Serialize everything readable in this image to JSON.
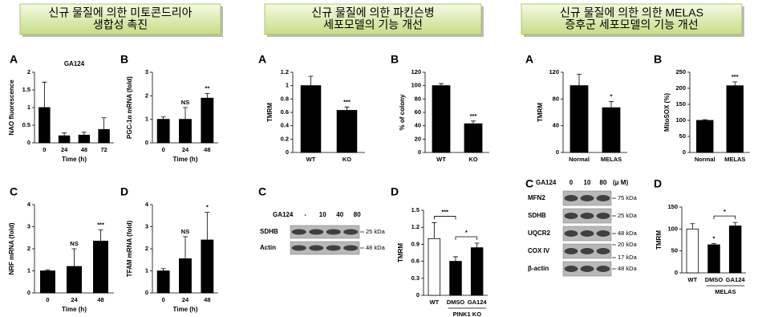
{
  "headers": [
    [
      "신규 물질에 의한 미토콘드리아",
      "생합성 촉진"
    ],
    [
      "신규 물질에 의한 파킨슨병",
      "세포모델의 기능 개선"
    ],
    [
      "신규 물질에 의한 의한 MELAS",
      "증후군 세포모델의 기능 개선"
    ]
  ],
  "chart_data": [
    {
      "type": "bar",
      "label": "A",
      "title": "GA124",
      "ylabel": "NAO fluorescence",
      "xlabel": "Time (h)",
      "categories": [
        "0",
        "24",
        "48",
        "72"
      ],
      "values": [
        1.0,
        0.2,
        0.22,
        0.38
      ],
      "errors": [
        0.72,
        0.08,
        0.08,
        0.33
      ],
      "color": "#000000",
      "ylim": [
        0,
        2
      ],
      "yticks": [
        0,
        0.5,
        1,
        1.5,
        2
      ]
    },
    {
      "type": "bar",
      "label": "B",
      "ylabel": "PGC-1α mRNA (fold)",
      "xlabel": "Time (h)",
      "categories": [
        "0",
        "24",
        "48"
      ],
      "values": [
        1.0,
        1.0,
        1.9
      ],
      "errors": [
        0.1,
        0.5,
        0.2
      ],
      "annotations": [
        null,
        "NS",
        "**"
      ],
      "color": "#000000",
      "ylim": [
        0,
        3
      ],
      "yticks": [
        0,
        1,
        2,
        3
      ]
    },
    {
      "type": "bar",
      "label": "C",
      "ylabel": "NRF mRNA (fold)",
      "xlabel": "Time (h)",
      "categories": [
        "0",
        "24",
        "48"
      ],
      "values": [
        1.0,
        1.2,
        2.35
      ],
      "errors": [
        0.05,
        0.8,
        0.5
      ],
      "annotations": [
        null,
        "NS",
        "***"
      ],
      "color": "#000000",
      "ylim": [
        0,
        4
      ],
      "yticks": [
        0,
        1,
        2,
        3,
        4
      ]
    },
    {
      "type": "bar",
      "label": "D",
      "ylabel": "TFAM mRNA (fold)",
      "xlabel": "Time (h)",
      "categories": [
        "0",
        "24",
        "48"
      ],
      "values": [
        1.0,
        1.55,
        2.4
      ],
      "errors": [
        0.1,
        1.0,
        1.25
      ],
      "annotations": [
        null,
        "NS",
        "*"
      ],
      "color": "#000000",
      "ylim": [
        0,
        4
      ],
      "yticks": [
        0,
        1,
        2,
        3,
        4
      ]
    },
    {
      "type": "bar",
      "label": "A",
      "ylabel": "TMRM",
      "categories": [
        "WT",
        "KO"
      ],
      "values": [
        1.0,
        0.63
      ],
      "errors": [
        0.14,
        0.05
      ],
      "annotations": [
        null,
        "***"
      ],
      "color": "#000000",
      "ylim": [
        0,
        1.2
      ],
      "yticks": [
        0,
        0.2,
        0.4,
        0.6,
        0.8,
        1,
        1.2
      ]
    },
    {
      "type": "bar",
      "label": "B",
      "ylabel": "% of colony",
      "categories": [
        "WT",
        "KO"
      ],
      "values": [
        100,
        43
      ],
      "errors": [
        3,
        4
      ],
      "annotations": [
        null,
        "***"
      ],
      "color": "#000000",
      "ylim": [
        0,
        120
      ],
      "yticks": [
        0,
        20,
        40,
        60,
        80,
        100,
        120
      ]
    },
    {
      "type": "bar",
      "label": "D",
      "ylabel": "TMRM",
      "categories": [
        "WT",
        "DMSO",
        "GA124"
      ],
      "values": [
        1.0,
        0.6,
        0.84
      ],
      "errors": [
        0.28,
        0.08,
        0.08
      ],
      "colors": [
        "#ffffff",
        "#000000",
        "#000000"
      ],
      "bracket_labels": [
        "***",
        "*"
      ],
      "group": "PINK1 KO",
      "ylim": [
        0,
        1.5
      ],
      "yticks": [
        0,
        0.3,
        0.6,
        0.9,
        1.2,
        1.5
      ]
    },
    {
      "type": "bar",
      "label": "A",
      "ylabel": "TMRM",
      "categories": [
        "Normal",
        "MELAS"
      ],
      "values": [
        100,
        67
      ],
      "errors": [
        17,
        9
      ],
      "annotations": [
        null,
        "*"
      ],
      "color": "#000000",
      "ylim": [
        0,
        120
      ],
      "yticks": [
        0,
        40,
        80,
        120
      ]
    },
    {
      "type": "bar",
      "label": "B",
      "ylabel": "MitoSOX (%)",
      "categories": [
        "Normal",
        "MELAS"
      ],
      "values": [
        100,
        208
      ],
      "errors": [
        2,
        12
      ],
      "annotations": [
        null,
        "***"
      ],
      "color": "#000000",
      "ylim": [
        0,
        250
      ],
      "yticks": [
        0,
        50,
        100,
        150,
        200,
        250
      ]
    },
    {
      "type": "bar",
      "label": "D",
      "ylabel": "TMRM",
      "categories": [
        "WT",
        "DMSO",
        "GA124"
      ],
      "values": [
        100,
        64,
        107
      ],
      "errors": [
        12,
        3,
        8
      ],
      "annotations": [
        null,
        "*",
        null
      ],
      "colors": [
        "#ffffff",
        "#000000",
        "#000000"
      ],
      "bracket_labels": [
        null,
        "*"
      ],
      "group": "MELAS",
      "ylim": [
        0,
        150
      ],
      "yticks": [
        0,
        50,
        100,
        150
      ]
    }
  ],
  "blots": [
    {
      "label": "C",
      "treatment": "GA124",
      "lanes": [
        "-",
        "10",
        "40",
        "80"
      ],
      "rows": [
        {
          "name": "SDHB",
          "markers": [
            "25 kDa"
          ]
        },
        {
          "name": "Actin",
          "markers": [
            "48 kDa"
          ]
        }
      ]
    },
    {
      "label": "C",
      "treatment": "GA124",
      "lanes": [
        "0",
        "10",
        "80"
      ],
      "unit": "(μ M)",
      "rows": [
        {
          "name": "MFN2",
          "markers": [
            "75 kDa"
          ]
        },
        {
          "name": "SDHB",
          "markers": [
            "25 kDa"
          ]
        },
        {
          "name": "UQCR2",
          "markers": [
            "48 kDa"
          ]
        },
        {
          "name": "COX IV",
          "markers": [
            "20 kDa",
            "17 kDa"
          ]
        },
        {
          "name": "β-actin",
          "markers": [
            "48 kDa"
          ]
        }
      ]
    }
  ]
}
